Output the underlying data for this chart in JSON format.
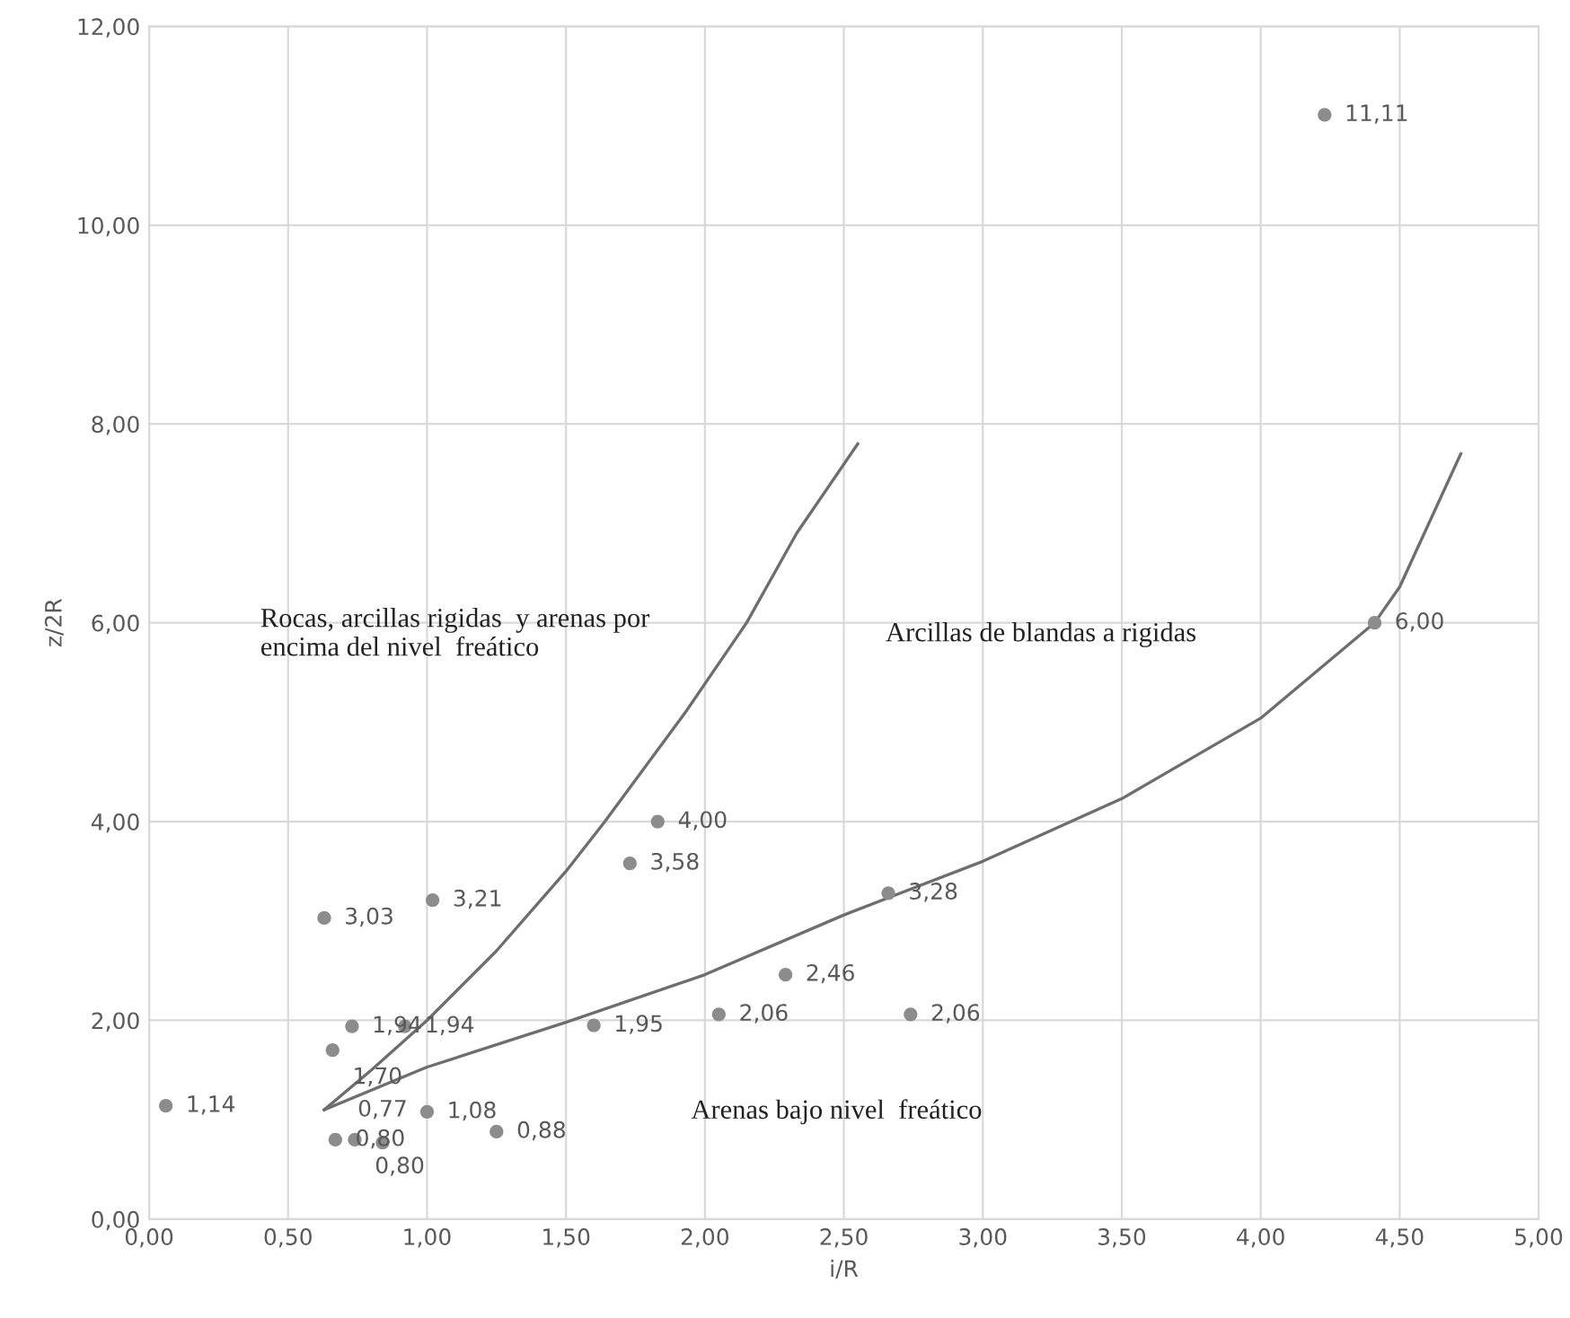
{
  "chart_data": {
    "type": "scatter",
    "xlabel": "i/R",
    "ylabel": "z/2R",
    "xlim": [
      0,
      5
    ],
    "ylim": [
      0,
      12
    ],
    "xticks": [
      {
        "value": 0,
        "label": "0,00"
      },
      {
        "value": 0.5,
        "label": "0,50"
      },
      {
        "value": 1,
        "label": "1,00"
      },
      {
        "value": 1.5,
        "label": "1,50"
      },
      {
        "value": 2,
        "label": "2,00"
      },
      {
        "value": 2.5,
        "label": "2,50"
      },
      {
        "value": 3,
        "label": "3,00"
      },
      {
        "value": 3.5,
        "label": "3,50"
      },
      {
        "value": 4,
        "label": "4,00"
      },
      {
        "value": 4.5,
        "label": "4,50"
      },
      {
        "value": 5,
        "label": "5,00"
      }
    ],
    "yticks": [
      {
        "value": 0,
        "label": "0,00"
      },
      {
        "value": 2,
        "label": "2,00"
      },
      {
        "value": 4,
        "label": "4,00"
      },
      {
        "value": 6,
        "label": "6,00"
      },
      {
        "value": 8,
        "label": "8,00"
      },
      {
        "value": 10,
        "label": "10,00"
      },
      {
        "value": 12,
        "label": "12,00"
      }
    ],
    "grid": true,
    "marker": "circle",
    "series": [
      {
        "type": "scatter",
        "color": "#8c8c8c",
        "x": [
          0.06,
          0.63,
          1.02,
          0.73,
          0.92,
          0.66,
          1.0,
          1.25,
          0.67,
          0.74,
          0.84,
          1.6,
          1.83,
          1.73,
          2.05,
          2.29,
          2.66,
          2.74,
          4.41,
          4.23
        ],
        "values": [
          1.14,
          3.03,
          3.21,
          1.94,
          1.94,
          1.7,
          1.08,
          0.88,
          0.8,
          0.8,
          0.77,
          1.95,
          4.0,
          3.58,
          2.06,
          2.46,
          3.28,
          2.06,
          6.0,
          11.11
        ],
        "value_labels": [
          "1,14",
          "3,03",
          "3,21",
          "1,94",
          "1,94",
          "1,70",
          "1,08",
          "0,88",
          "0,80",
          "0,80",
          "0,77",
          "1,95",
          "4,00",
          "3,58",
          "2,06",
          "2,46",
          "3,28",
          "2,06",
          "6,00",
          "11,11"
        ]
      },
      {
        "type": "line",
        "marker": "none",
        "color": "#6e6e6e",
        "x": [
          0.63,
          0.8,
          1.0,
          1.25,
          1.5,
          1.64,
          1.93,
          2.15,
          2.33,
          2.55
        ],
        "values": [
          1.1,
          1.5,
          2.0,
          2.7,
          3.5,
          4.0,
          5.1,
          6.0,
          6.9,
          7.8
        ]
      },
      {
        "type": "line",
        "marker": "none",
        "color": "#6e6e6e",
        "x": [
          0.63,
          1.0,
          1.5,
          2.0,
          2.5,
          3.0,
          3.5,
          4.0,
          4.41,
          4.5,
          4.72
        ],
        "values": [
          1.1,
          1.53,
          1.98,
          2.46,
          3.06,
          3.6,
          4.23,
          5.04,
          6.0,
          6.36,
          7.7
        ]
      }
    ],
    "annotations": [
      "Rocas, arcillas rigidas  y arenas por\nencima del nivel  freático",
      "Arcillas de blandas a rigidas",
      "Arenas bajo nivel  freático"
    ]
  }
}
